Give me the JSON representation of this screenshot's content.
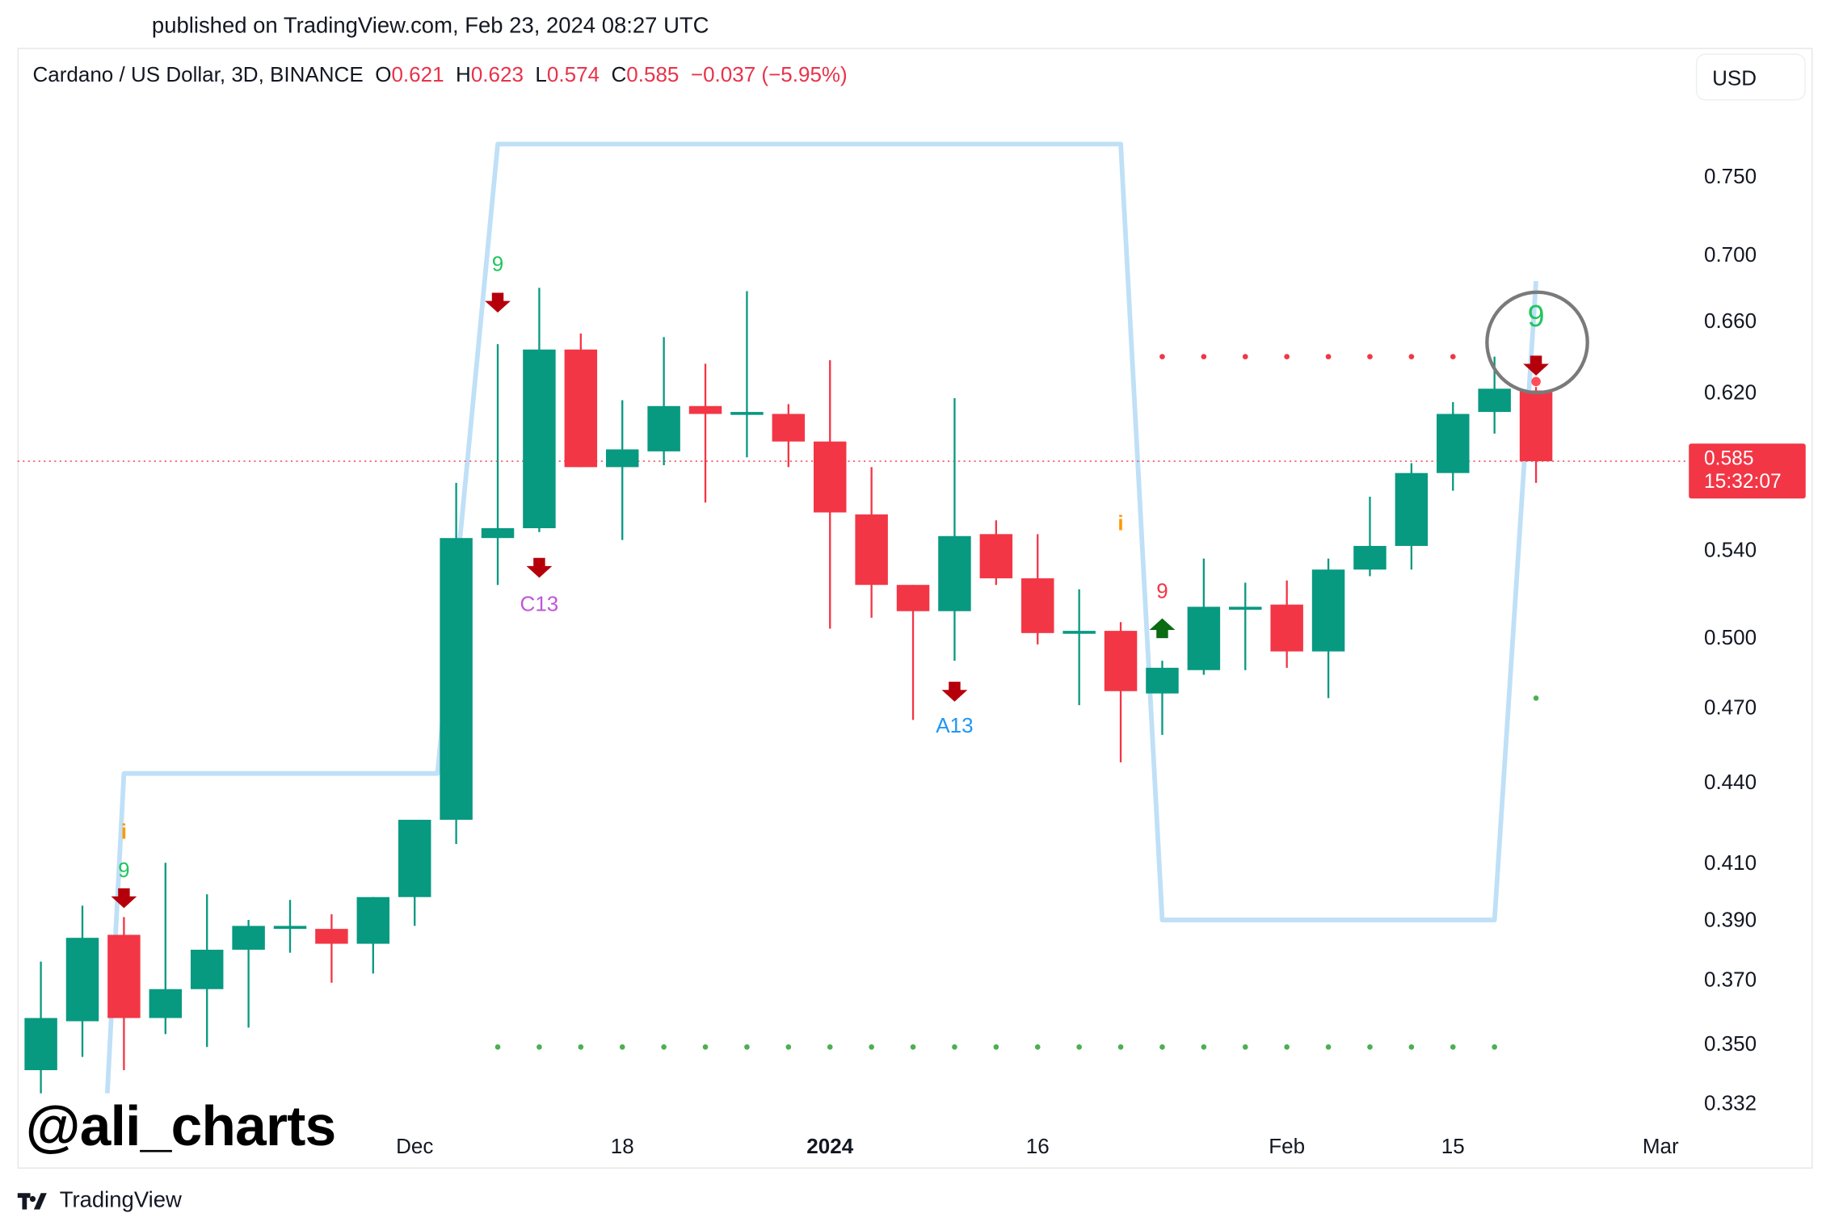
{
  "header": {
    "published": "published on TradingView.com, Feb 23, 2024 08:27 UTC"
  },
  "legend": {
    "symbol": "Cardano / US Dollar, 3D, BINANCE",
    "o_label": "O",
    "o": "0.621",
    "h_label": "H",
    "h": "0.623",
    "l_label": "L",
    "l": "0.574",
    "c_label": "C",
    "c": "0.585",
    "change": "−0.037 (−5.95%)"
  },
  "currency_button": "USD",
  "last_price": {
    "price": "0.585",
    "countdown": "15:32:07"
  },
  "watermark": "@ali_charts",
  "footer": {
    "brand": "TradingView",
    "logo_icon": "tradingview-logo-icon"
  },
  "colors": {
    "up": "#089981",
    "down": "#f23645",
    "level_line": "#bfe0f7",
    "resist_dots": "#f23645",
    "support_dots": "#4caf50"
  },
  "chart_data": {
    "type": "candlestick",
    "title": "Cardano / US Dollar, 3D, BINANCE",
    "ylim": [
      0.332,
      0.8
    ],
    "y_scale": "log",
    "yticks": [
      "0.750",
      "0.700",
      "0.660",
      "0.620",
      "0.540",
      "0.500",
      "0.470",
      "0.440",
      "0.410",
      "0.390",
      "0.370",
      "0.350",
      "0.332"
    ],
    "xticks": [
      {
        "label": "Dec",
        "index": 9,
        "bold": false
      },
      {
        "label": "18",
        "index": 14,
        "bold": false
      },
      {
        "label": "2024",
        "index": 19,
        "bold": true
      },
      {
        "label": "16",
        "index": 24,
        "bold": false
      },
      {
        "label": "Feb",
        "index": 30,
        "bold": false
      },
      {
        "label": "15",
        "index": 34,
        "bold": false
      },
      {
        "label": "Mar",
        "index": 39,
        "bold": false
      }
    ],
    "ohlc": [
      [
        0.342,
        0.376,
        0.335,
        0.358
      ],
      [
        0.357,
        0.395,
        0.346,
        0.384
      ],
      [
        0.385,
        0.391,
        0.342,
        0.358
      ],
      [
        0.358,
        0.41,
        0.353,
        0.367
      ],
      [
        0.367,
        0.399,
        0.349,
        0.38
      ],
      [
        0.38,
        0.39,
        0.355,
        0.388
      ],
      [
        0.387,
        0.397,
        0.379,
        0.388
      ],
      [
        0.387,
        0.392,
        0.369,
        0.382
      ],
      [
        0.382,
        0.398,
        0.372,
        0.398
      ],
      [
        0.398,
        0.426,
        0.388,
        0.426
      ],
      [
        0.426,
        0.574,
        0.417,
        0.546
      ],
      [
        0.546,
        0.647,
        0.524,
        0.551
      ],
      [
        0.551,
        0.68,
        0.549,
        0.644
      ],
      [
        0.644,
        0.653,
        0.582,
        0.582
      ],
      [
        0.582,
        0.616,
        0.545,
        0.591
      ],
      [
        0.59,
        0.651,
        0.583,
        0.613
      ],
      [
        0.613,
        0.636,
        0.564,
        0.609
      ],
      [
        0.609,
        0.678,
        0.587,
        0.61
      ],
      [
        0.609,
        0.614,
        0.582,
        0.595
      ],
      [
        0.595,
        0.638,
        0.504,
        0.559
      ],
      [
        0.558,
        0.582,
        0.509,
        0.524
      ],
      [
        0.524,
        0.524,
        0.465,
        0.512
      ],
      [
        0.512,
        0.617,
        0.49,
        0.547
      ],
      [
        0.548,
        0.555,
        0.524,
        0.527
      ],
      [
        0.527,
        0.548,
        0.497,
        0.502
      ],
      [
        0.502,
        0.522,
        0.471,
        0.503
      ],
      [
        0.503,
        0.507,
        0.448,
        0.477
      ],
      [
        0.476,
        0.49,
        0.459,
        0.487
      ],
      [
        0.486,
        0.536,
        0.484,
        0.514
      ],
      [
        0.514,
        0.525,
        0.486,
        0.514
      ],
      [
        0.515,
        0.526,
        0.487,
        0.494
      ],
      [
        0.494,
        0.536,
        0.474,
        0.531
      ],
      [
        0.531,
        0.567,
        0.528,
        0.542
      ],
      [
        0.542,
        0.584,
        0.531,
        0.579
      ],
      [
        0.579,
        0.615,
        0.57,
        0.609
      ],
      [
        0.61,
        0.64,
        0.599,
        0.622
      ],
      [
        0.621,
        0.623,
        0.574,
        0.585
      ]
    ],
    "level_line": [
      [
        1.6,
        0.335
      ],
      [
        2,
        0.4435
      ],
      [
        9.55,
        0.4435
      ],
      [
        11,
        0.77
      ],
      [
        26,
        0.77
      ],
      [
        27,
        0.39
      ],
      [
        35,
        0.39
      ],
      [
        36,
        0.684
      ]
    ],
    "resistance_dots": {
      "price": 0.64,
      "from": 27,
      "to": 34
    },
    "support_dots": {
      "price": 0.349,
      "from": 11,
      "to": 35
    },
    "extra_dot": {
      "index": 36,
      "price": 0.474
    },
    "markers": [
      {
        "index": 2,
        "kind": "text",
        "text": "i",
        "price": 0.419,
        "color": "#ff9800"
      },
      {
        "index": 2,
        "kind": "text",
        "text": "9",
        "price": 0.405,
        "color": "#22c55e"
      },
      {
        "index": 2,
        "kind": "sell-arrow",
        "price": 0.397
      },
      {
        "index": 11,
        "kind": "text",
        "text": "9",
        "price": 0.69,
        "color": "#22c55e"
      },
      {
        "index": 11,
        "kind": "sell-arrow",
        "price": 0.67
      },
      {
        "index": 12,
        "kind": "sell-arrow",
        "price": 0.531
      },
      {
        "index": 12,
        "kind": "text",
        "text": "C13",
        "price": 0.512,
        "color": "#c155d9"
      },
      {
        "index": 22,
        "kind": "sell-arrow",
        "price": 0.476
      },
      {
        "index": 22,
        "kind": "text",
        "text": "A13",
        "price": 0.46,
        "color": "#2196f3"
      },
      {
        "index": 26,
        "kind": "text",
        "text": "i",
        "price": 0.55,
        "color": "#ff9800"
      },
      {
        "index": 27,
        "kind": "text",
        "text": "9",
        "price": 0.518,
        "color": "#f23645"
      },
      {
        "index": 27,
        "kind": "buy-arrow",
        "price": 0.505
      },
      {
        "index": 36,
        "kind": "text-large",
        "text": "9",
        "price": 0.657,
        "color": "#22c55e"
      },
      {
        "index": 36,
        "kind": "sell-arrow",
        "price": 0.634
      }
    ],
    "highlight_circle": {
      "index": 36,
      "price": 0.648
    },
    "last_price_line": 0.585
  }
}
